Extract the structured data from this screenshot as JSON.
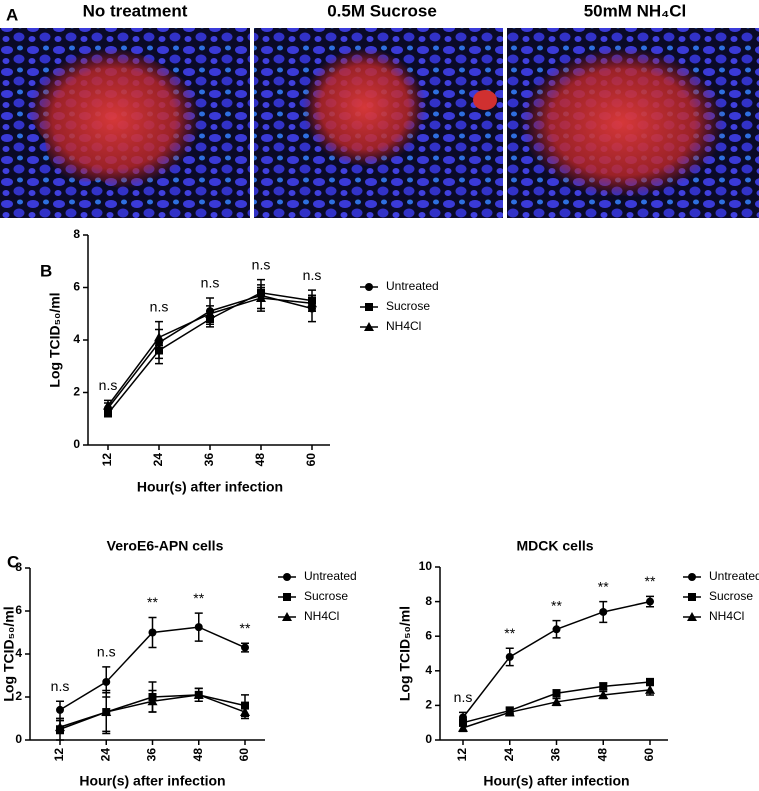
{
  "figure": {
    "panel_label": "A",
    "images": [
      {
        "title": "No treatment"
      },
      {
        "title": "0.5M Sucrose"
      },
      {
        "title": "50mM NH₄Cl"
      }
    ]
  },
  "chart_data": [
    {
      "type": "line",
      "panel_label": "B",
      "x_label": "Hour(s) after infection",
      "y_label": "Log TCID₅₀/ml",
      "categories": [
        "12",
        "24",
        "36",
        "48",
        "60"
      ],
      "ylim": [
        0,
        8
      ],
      "yticks": [
        0,
        2,
        4,
        6,
        8
      ],
      "annotations": [
        "n.s",
        "n.s",
        "n.s",
        "n.s",
        "n.s"
      ],
      "series": [
        {
          "name": "Untreated",
          "color": "#000000",
          "marker": "circle",
          "values": [
            1.4,
            3.9,
            5.1,
            5.7,
            5.2
          ],
          "errors": [
            0.2,
            0.8,
            0.5,
            0.6,
            0.5
          ]
        },
        {
          "name": "Sucrose",
          "color": "#000000",
          "marker": "square",
          "values": [
            1.2,
            3.6,
            4.8,
            5.8,
            5.5
          ],
          "errors": [
            0.1,
            0.3,
            0.3,
            0.3,
            0.4
          ]
        },
        {
          "name": "NH4Cl",
          "color": "#000000",
          "marker": "triangle",
          "values": [
            1.5,
            4.1,
            5.0,
            5.6,
            5.4
          ],
          "errors": [
            0.2,
            0.3,
            0.3,
            0.4,
            0.3
          ]
        }
      ]
    },
    {
      "type": "line",
      "panel_label": "C",
      "title": "VeroE6-APN cells",
      "x_label": "Hour(s) after infection",
      "y_label": "Log TCID₅₀/ml",
      "categories": [
        "12",
        "24",
        "36",
        "48",
        "60"
      ],
      "ylim": [
        0,
        8
      ],
      "yticks": [
        0,
        2,
        4,
        6,
        8
      ],
      "annotations": [
        "n.s",
        "n.s",
        "**",
        "**",
        "**"
      ],
      "series": [
        {
          "name": "Untreated",
          "color": "#000000",
          "marker": "circle",
          "values": [
            1.4,
            2.7,
            5.0,
            5.25,
            4.3
          ],
          "errors": [
            0.4,
            0.7,
            0.7,
            0.65,
            0.2
          ]
        },
        {
          "name": "Sucrose",
          "color": "#000000",
          "marker": "square",
          "values": [
            0.5,
            1.3,
            2.0,
            2.1,
            1.6
          ],
          "errors": [
            0.5,
            0.9,
            0.7,
            0.3,
            0.5
          ]
        },
        {
          "name": "NH4Cl",
          "color": "#000000",
          "marker": "triangle",
          "values": [
            0.6,
            1.3,
            1.8,
            2.1,
            1.3
          ],
          "errors": [
            0.3,
            1.0,
            0.5,
            0.3,
            0.3
          ]
        }
      ]
    },
    {
      "type": "line",
      "title": "MDCK cells",
      "x_label": "Hour(s) after infection",
      "y_label": "Log TCID₅₀/ml",
      "categories": [
        "12",
        "24",
        "36",
        "48",
        "60"
      ],
      "ylim": [
        0,
        10
      ],
      "yticks": [
        0,
        2,
        4,
        6,
        8,
        10
      ],
      "annotations": [
        "n.s",
        "**",
        "**",
        "**",
        "**"
      ],
      "series": [
        {
          "name": "Untreated",
          "color": "#000000",
          "marker": "circle",
          "values": [
            1.3,
            4.8,
            6.4,
            7.4,
            8.0
          ],
          "errors": [
            0.3,
            0.5,
            0.5,
            0.6,
            0.3
          ]
        },
        {
          "name": "Sucrose",
          "color": "#000000",
          "marker": "square",
          "values": [
            1.0,
            1.7,
            2.7,
            3.1,
            3.35
          ],
          "errors": [
            0.2,
            0.2,
            0.2,
            0.2,
            0.2
          ]
        },
        {
          "name": "NH4Cl",
          "color": "#000000",
          "marker": "triangle",
          "values": [
            0.7,
            1.6,
            2.2,
            2.6,
            2.9
          ],
          "errors": [
            0.2,
            0.2,
            0.2,
            0.2,
            0.3
          ]
        }
      ]
    }
  ]
}
